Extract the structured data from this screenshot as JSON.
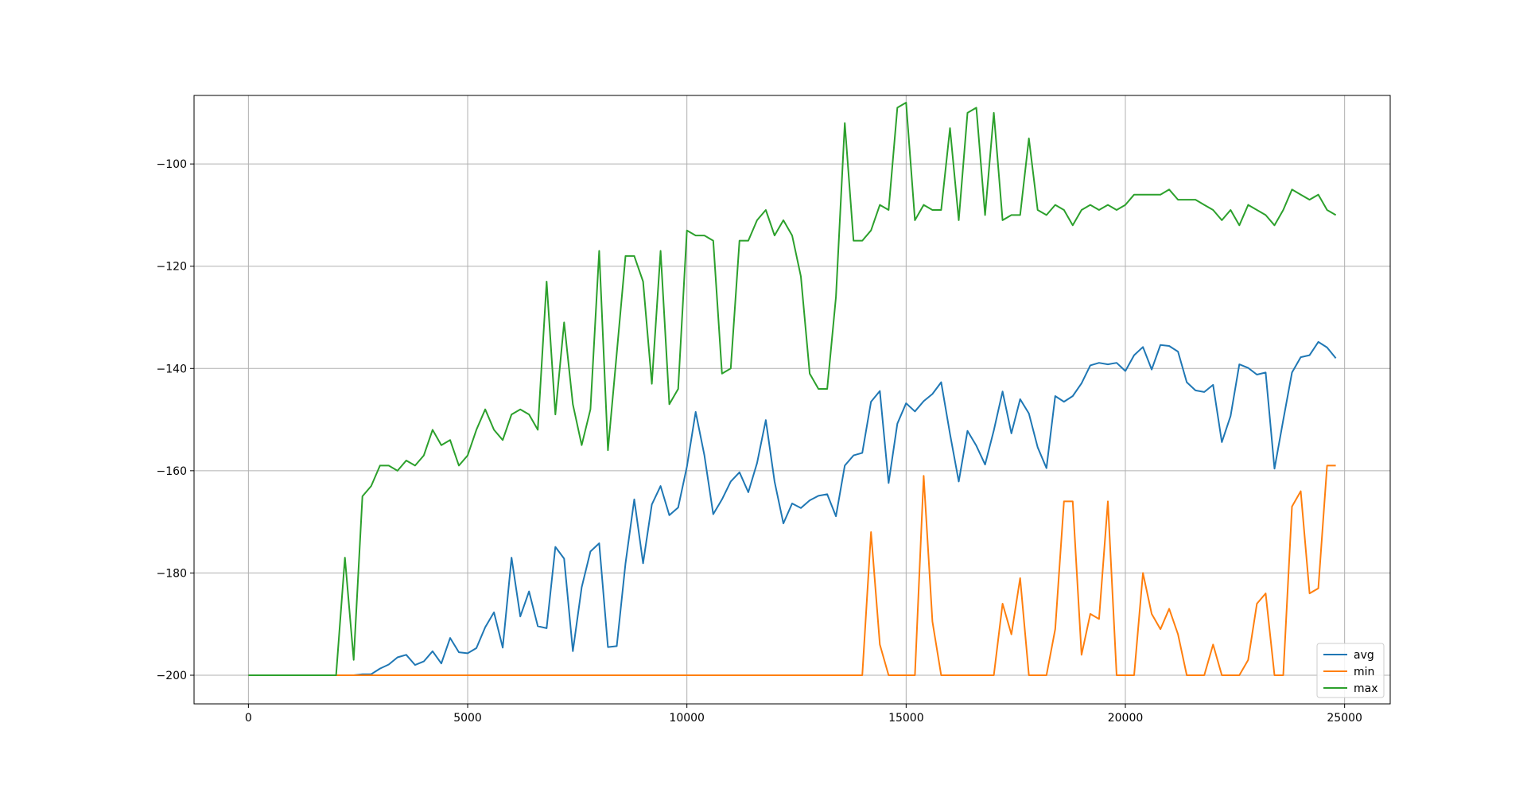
{
  "chart_data": {
    "type": "line",
    "title": "",
    "xlabel": "",
    "ylabel": "",
    "xlim": [
      -1240,
      26040
    ],
    "ylim": [
      -205.6,
      -86.6
    ],
    "xticks": [
      0,
      5000,
      10000,
      15000,
      20000,
      25000
    ],
    "xtick_labels": [
      "0",
      "5000",
      "10000",
      "15000",
      "20000",
      "25000"
    ],
    "yticks": [
      -200,
      -180,
      -160,
      -140,
      -120,
      -100
    ],
    "ytick_labels": [
      "−200",
      "−180",
      "−160",
      "−140",
      "−120",
      "−100"
    ],
    "grid": true,
    "legend_position": "lower-right",
    "x": [
      0,
      200,
      400,
      600,
      800,
      1000,
      1200,
      1400,
      1600,
      1800,
      2000,
      2200,
      2400,
      2600,
      2800,
      3000,
      3200,
      3400,
      3600,
      3800,
      4000,
      4200,
      4400,
      4600,
      4800,
      5000,
      5200,
      5400,
      5600,
      5800,
      6000,
      6200,
      6400,
      6600,
      6800,
      7000,
      7200,
      7400,
      7600,
      7800,
      8000,
      8200,
      8400,
      8600,
      8800,
      9000,
      9200,
      9400,
      9600,
      9800,
      10000,
      10200,
      10400,
      10600,
      10800,
      11000,
      11200,
      11400,
      11600,
      11800,
      12000,
      12200,
      12400,
      12600,
      12800,
      13000,
      13200,
      13400,
      13600,
      13800,
      14000,
      14200,
      14400,
      14600,
      14800,
      15000,
      15200,
      15400,
      15600,
      15800,
      16000,
      16200,
      16400,
      16600,
      16800,
      17000,
      17200,
      17400,
      17600,
      17800,
      18000,
      18200,
      18400,
      18600,
      18800,
      19000,
      19200,
      19400,
      19600,
      19800,
      20000,
      20200,
      20400,
      20600,
      20800,
      21000,
      21200,
      21400,
      21600,
      21800,
      22000,
      22200,
      22400,
      22600,
      22800,
      23000,
      23200,
      23400,
      23600,
      23800,
      24000,
      24200,
      24400,
      24600,
      24800
    ],
    "series": [
      {
        "name": "avg",
        "color": "#1f77b4",
        "values": [
          -200,
          -200,
          -200,
          -200,
          -200,
          -200,
          -200,
          -200,
          -200,
          -200,
          -200,
          -200,
          -200,
          -199.8,
          -199.8,
          -198.7,
          -197.9,
          -196.5,
          -196,
          -198,
          -197.3,
          -195.3,
          -197.7,
          -192.7,
          -195.5,
          -195.7,
          -194.7,
          -190.6,
          -187.7,
          -194.6,
          -177,
          -188.5,
          -183.6,
          -190.4,
          -190.8,
          -174.9,
          -177.2,
          -195.3,
          -182.8,
          -175.8,
          -174.2,
          -194.5,
          -194.3,
          -178.1,
          -165.6,
          -178.1,
          -166.6,
          -163,
          -168.7,
          -167.2,
          -159.2,
          -148.5,
          -157,
          -168.5,
          -165.6,
          -162.1,
          -160.3,
          -164.2,
          -158.5,
          -150.1,
          -162.1,
          -170.3,
          -166.4,
          -167.3,
          -165.8,
          -164.9,
          -164.6,
          -168.9,
          -159,
          -157,
          -156.5,
          -146.5,
          -144.4,
          -162.4,
          -150.8,
          -146.8,
          -148.4,
          -146.4,
          -145,
          -142.7,
          -152.8,
          -162.1,
          -152.2,
          -155.1,
          -158.8,
          -152.1,
          -144.5,
          -152.7,
          -146,
          -148.8,
          -155.4,
          -159.5,
          -145.4,
          -146.5,
          -145.4,
          -142.9,
          -139.4,
          -138.9,
          -139.2,
          -138.9,
          -140.5,
          -137.4,
          -135.8,
          -140.2,
          -135.4,
          -135.6,
          -136.7,
          -142.7,
          -144.3,
          -144.6,
          -143.2,
          -154.4,
          -149.3,
          -139.2,
          -139.9,
          -141.2,
          -140.8,
          -159.6,
          -150.1,
          -140.8,
          -137.8,
          -137.4,
          -134.8,
          -135.9,
          -138
        ]
      },
      {
        "name": "min",
        "color": "#ff7f0e",
        "values": [
          -200,
          -200,
          -200,
          -200,
          -200,
          -200,
          -200,
          -200,
          -200,
          -200,
          -200,
          -200,
          -200,
          -200,
          -200,
          -200,
          -200,
          -200,
          -200,
          -200,
          -200,
          -200,
          -200,
          -200,
          -200,
          -200,
          -200,
          -200,
          -200,
          -200,
          -200,
          -200,
          -200,
          -200,
          -200,
          -200,
          -200,
          -200,
          -200,
          -200,
          -200,
          -200,
          -200,
          -200,
          -200,
          -200,
          -200,
          -200,
          -200,
          -200,
          -200,
          -200,
          -200,
          -200,
          -200,
          -200,
          -200,
          -200,
          -200,
          -200,
          -200,
          -200,
          -200,
          -200,
          -200,
          -200,
          -200,
          -200,
          -200,
          -200,
          -200,
          -172,
          -194,
          -200,
          -200,
          -200,
          -200,
          -161,
          -189.5,
          -200,
          -200,
          -200,
          -200,
          -200,
          -200,
          -200,
          -186,
          -192,
          -181,
          -200,
          -200,
          -200,
          -191,
          -166,
          -166,
          -196,
          -188,
          -189,
          -166,
          -200,
          -200,
          -200,
          -180,
          -188,
          -191,
          -187,
          -192,
          -200,
          -200,
          -200,
          -194,
          -200,
          -200,
          -200,
          -197,
          -186,
          -184,
          -200,
          -200,
          -167,
          -164,
          -184,
          -183,
          -159,
          -159
        ]
      },
      {
        "name": "max",
        "color": "#2ca02c",
        "values": [
          -200,
          -200,
          -200,
          -200,
          -200,
          -200,
          -200,
          -200,
          -200,
          -200,
          -200,
          -177,
          -197,
          -165,
          -163,
          -159,
          -159,
          -160,
          -158,
          -159,
          -157,
          -152,
          -155,
          -154,
          -159,
          -157,
          -152,
          -148,
          -152,
          -154,
          -149,
          -148,
          -149,
          -152,
          -123,
          -149,
          -131,
          -147,
          -155,
          -148,
          -117,
          -156,
          -137,
          -118,
          -118,
          -123,
          -143,
          -117,
          -147,
          -144,
          -113,
          -114,
          -114,
          -115,
          -141,
          -140,
          -115,
          -115,
          -111,
          -109,
          -114,
          -111,
          -114,
          -122,
          -141,
          -144,
          -144,
          -126,
          -92,
          -115,
          -115,
          -113,
          -108,
          -109,
          -89,
          -88,
          -111,
          -108,
          -109,
          -109,
          -93,
          -111,
          -90,
          -89,
          -110,
          -90,
          -111,
          -110,
          -110,
          -95,
          -109,
          -110,
          -108,
          -109,
          -112,
          -109,
          -108,
          -109,
          -108,
          -109,
          -108,
          -106,
          -106,
          -106,
          -106,
          -105,
          -107,
          -107,
          -107,
          -108,
          -109,
          -111,
          -109,
          -112,
          -108,
          -109,
          -110,
          -112,
          -109,
          -105,
          -106,
          -107,
          -106,
          -109,
          -110
        ]
      }
    ]
  }
}
